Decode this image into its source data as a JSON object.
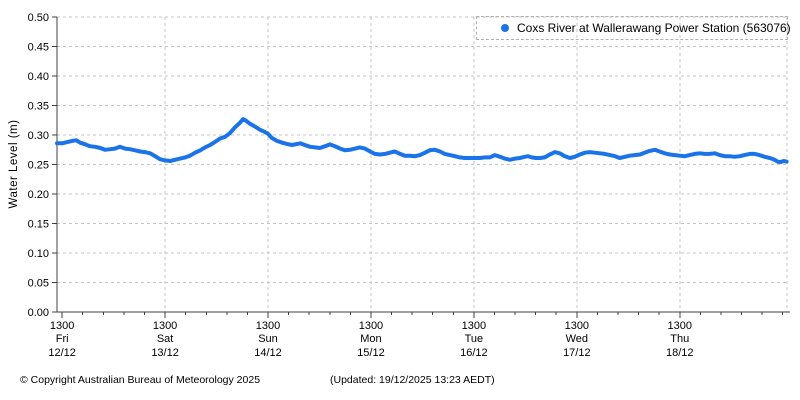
{
  "footer": {
    "copyright": "© Copyright Australian Bureau of Meteorology 2025",
    "updated": "(Updated: 19/12/2025 13:23 AEDT)"
  },
  "colors": {
    "series_blue": "#1a73e8",
    "grid_gray": "#c4c4c4",
    "axis_dark": "#404040",
    "legend_border": "#b0b0b0",
    "background": "#ffffff"
  },
  "chart_data": {
    "type": "line",
    "title": "",
    "ylabel": "Water Level (m)",
    "xlabel": "",
    "ylim": [
      0,
      0.5
    ],
    "ytick_step": 0.05,
    "xlim_hours": [
      -1.2,
      169
    ],
    "grid": true,
    "legend_position": "top-right",
    "minor_tick_hours": 4.8,
    "xticks": [
      {
        "hour": 0,
        "time": "1300",
        "day": "Fri",
        "date": "12/12"
      },
      {
        "hour": 24,
        "time": "1300",
        "day": "Sat",
        "date": "13/12"
      },
      {
        "hour": 48,
        "time": "1300",
        "day": "Sun",
        "date": "14/12"
      },
      {
        "hour": 72,
        "time": "1300",
        "day": "Mon",
        "date": "15/12"
      },
      {
        "hour": 96,
        "time": "1300",
        "day": "Tue",
        "date": "16/12"
      },
      {
        "hour": 120,
        "time": "1300",
        "day": "Wed",
        "date": "17/12"
      },
      {
        "hour": 144,
        "time": "1300",
        "day": "Thu",
        "date": "18/12"
      }
    ],
    "series": [
      {
        "name": "Coxs River at Wallerawang Power Station (563076)",
        "color": "#1a73e8",
        "marker": "dot",
        "points": [
          [
            -1.2,
            0.286
          ],
          [
            0.0,
            0.286
          ],
          [
            1.2,
            0.288
          ],
          [
            2.3,
            0.29
          ],
          [
            3.3,
            0.291
          ],
          [
            4.2,
            0.287
          ],
          [
            5.4,
            0.284
          ],
          [
            6.5,
            0.281
          ],
          [
            7.7,
            0.28
          ],
          [
            8.9,
            0.278
          ],
          [
            10.0,
            0.275
          ],
          [
            11.2,
            0.276
          ],
          [
            12.3,
            0.277
          ],
          [
            13.5,
            0.28
          ],
          [
            14.7,
            0.277
          ],
          [
            15.8,
            0.276
          ],
          [
            17.0,
            0.274
          ],
          [
            18.2,
            0.272
          ],
          [
            19.3,
            0.271
          ],
          [
            20.5,
            0.269
          ],
          [
            21.7,
            0.264
          ],
          [
            22.8,
            0.259
          ],
          [
            24.0,
            0.257
          ],
          [
            25.2,
            0.256
          ],
          [
            26.3,
            0.258
          ],
          [
            27.5,
            0.26
          ],
          [
            28.7,
            0.262
          ],
          [
            29.8,
            0.265
          ],
          [
            31.0,
            0.27
          ],
          [
            32.2,
            0.274
          ],
          [
            33.3,
            0.279
          ],
          [
            34.5,
            0.283
          ],
          [
            35.6,
            0.288
          ],
          [
            36.8,
            0.294
          ],
          [
            38.0,
            0.297
          ],
          [
            39.1,
            0.303
          ],
          [
            40.3,
            0.313
          ],
          [
            41.5,
            0.321
          ],
          [
            42.2,
            0.327
          ],
          [
            42.9,
            0.324
          ],
          [
            43.8,
            0.319
          ],
          [
            45.0,
            0.314
          ],
          [
            46.1,
            0.309
          ],
          [
            47.3,
            0.305
          ],
          [
            48.0,
            0.302
          ],
          [
            48.9,
            0.295
          ],
          [
            50.1,
            0.29
          ],
          [
            51.3,
            0.287
          ],
          [
            52.4,
            0.285
          ],
          [
            53.6,
            0.283
          ],
          [
            54.8,
            0.285
          ],
          [
            55.5,
            0.286
          ],
          [
            56.6,
            0.283
          ],
          [
            57.8,
            0.28
          ],
          [
            59.0,
            0.279
          ],
          [
            60.1,
            0.278
          ],
          [
            61.3,
            0.281
          ],
          [
            62.4,
            0.284
          ],
          [
            63.6,
            0.281
          ],
          [
            64.8,
            0.277
          ],
          [
            65.9,
            0.274
          ],
          [
            67.1,
            0.275
          ],
          [
            68.3,
            0.277
          ],
          [
            69.4,
            0.279
          ],
          [
            70.6,
            0.277
          ],
          [
            71.8,
            0.272
          ],
          [
            72.9,
            0.268
          ],
          [
            74.1,
            0.267
          ],
          [
            75.3,
            0.268
          ],
          [
            76.4,
            0.27
          ],
          [
            77.6,
            0.272
          ],
          [
            78.8,
            0.268
          ],
          [
            79.9,
            0.265
          ],
          [
            81.1,
            0.265
          ],
          [
            82.3,
            0.264
          ],
          [
            83.4,
            0.266
          ],
          [
            84.6,
            0.27
          ],
          [
            85.7,
            0.274
          ],
          [
            86.9,
            0.275
          ],
          [
            88.1,
            0.272
          ],
          [
            89.2,
            0.268
          ],
          [
            90.4,
            0.266
          ],
          [
            91.6,
            0.264
          ],
          [
            92.7,
            0.262
          ],
          [
            93.9,
            0.261
          ],
          [
            95.1,
            0.261
          ],
          [
            96.2,
            0.261
          ],
          [
            97.4,
            0.261
          ],
          [
            98.6,
            0.262
          ],
          [
            99.7,
            0.262
          ],
          [
            100.9,
            0.266
          ],
          [
            102.1,
            0.263
          ],
          [
            103.2,
            0.26
          ],
          [
            104.4,
            0.258
          ],
          [
            105.6,
            0.26
          ],
          [
            106.7,
            0.261
          ],
          [
            107.9,
            0.263
          ],
          [
            108.6,
            0.264
          ],
          [
            109.5,
            0.262
          ],
          [
            110.4,
            0.261
          ],
          [
            111.4,
            0.261
          ],
          [
            112.5,
            0.262
          ],
          [
            113.7,
            0.267
          ],
          [
            114.9,
            0.271
          ],
          [
            116.0,
            0.269
          ],
          [
            117.2,
            0.264
          ],
          [
            118.4,
            0.261
          ],
          [
            119.5,
            0.263
          ],
          [
            120.7,
            0.267
          ],
          [
            121.9,
            0.27
          ],
          [
            123.0,
            0.271
          ],
          [
            124.2,
            0.27
          ],
          [
            125.4,
            0.269
          ],
          [
            126.5,
            0.268
          ],
          [
            127.7,
            0.266
          ],
          [
            128.9,
            0.264
          ],
          [
            130.0,
            0.261
          ],
          [
            131.2,
            0.263
          ],
          [
            132.3,
            0.265
          ],
          [
            133.5,
            0.266
          ],
          [
            134.7,
            0.267
          ],
          [
            135.8,
            0.27
          ],
          [
            137.0,
            0.273
          ],
          [
            138.2,
            0.275
          ],
          [
            139.3,
            0.272
          ],
          [
            140.5,
            0.269
          ],
          [
            141.7,
            0.267
          ],
          [
            142.8,
            0.266
          ],
          [
            144.0,
            0.265
          ],
          [
            145.2,
            0.264
          ],
          [
            146.3,
            0.266
          ],
          [
            147.5,
            0.268
          ],
          [
            148.7,
            0.269
          ],
          [
            149.8,
            0.268
          ],
          [
            151.0,
            0.268
          ],
          [
            152.2,
            0.269
          ],
          [
            153.3,
            0.266
          ],
          [
            154.5,
            0.264
          ],
          [
            155.6,
            0.264
          ],
          [
            156.8,
            0.263
          ],
          [
            158.0,
            0.264
          ],
          [
            159.1,
            0.266
          ],
          [
            160.3,
            0.268
          ],
          [
            161.5,
            0.268
          ],
          [
            162.6,
            0.266
          ],
          [
            163.8,
            0.263
          ],
          [
            165.0,
            0.261
          ],
          [
            166.1,
            0.258
          ],
          [
            166.8,
            0.255
          ],
          [
            167.5,
            0.254
          ],
          [
            168.2,
            0.256
          ],
          [
            168.9,
            0.255
          ]
        ]
      }
    ]
  }
}
